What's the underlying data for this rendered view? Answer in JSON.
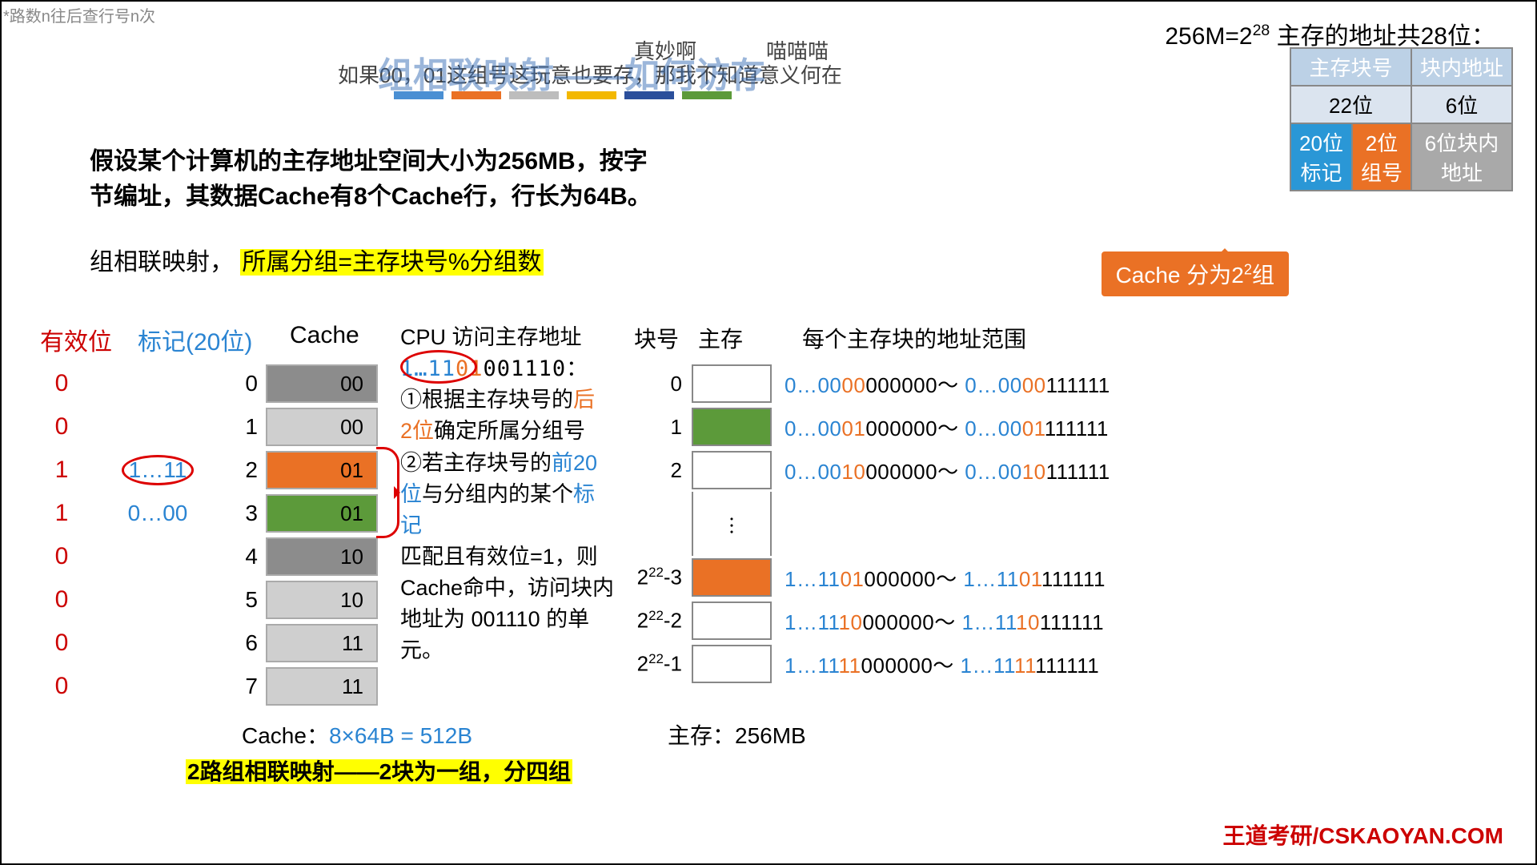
{
  "top_left": "*路数n往后查行号n次",
  "danmaku": {
    "d1": "如果00，01这组号这玩意也要存，那我不知道意义何在",
    "d2": "真妙啊",
    "d3": "喵喵喵"
  },
  "title_behind": "组相联映射——如何访存",
  "color_bars": [
    "#4a8fd3",
    "#ea7125",
    "#bdbdbd",
    "#f3b800",
    "#2b4f9b",
    "#5c9a3a"
  ],
  "problem": "假设某个计算机的主存地址空间大小为256MB，按字节编址，其数据Cache有8个Cache行，行长为64B。",
  "mapping": {
    "pre": "组相联映射，",
    "hl": "所属分组=主存块号%分组数"
  },
  "addr_note_pre": "256M=2",
  "addr_note_sup": "28",
  "addr_note_post": " 主存的地址共28位：",
  "addr_table": {
    "h1": "主存块号",
    "h2": "块内地址",
    "r2a": "22位",
    "r2b": "6位",
    "c1": "20位",
    "c1b": "标记",
    "c2": "2位",
    "c2b": "组号",
    "c3": "6位块内",
    "c3b": "地址",
    "bg1": "#bcd1e6",
    "bg2": "#dbe4ef",
    "bg_tag": "#2a97d6",
    "bg_grp": "#ea7125",
    "bg_off": "#a9a9a9"
  },
  "cache_badge_pre": "Cache 分为2",
  "cache_badge_sup": "2",
  "cache_badge_post": "组",
  "headers": {
    "valid": "有效位",
    "tag": "标记(20位)",
    "cache": "Cache"
  },
  "cache_rows": [
    {
      "valid": "0",
      "tag": "",
      "label": "00",
      "bg": "#8c8c8c"
    },
    {
      "valid": "0",
      "tag": "",
      "label": "00",
      "bg": "#cfcfcf"
    },
    {
      "valid": "1",
      "tag": "1…11",
      "circle": true,
      "label": "01",
      "bg": "#ea7125"
    },
    {
      "valid": "1",
      "tag": "0…00",
      "label": "01",
      "bg": "#5c9a3a"
    },
    {
      "valid": "0",
      "tag": "",
      "label": "10",
      "bg": "#8c8c8c"
    },
    {
      "valid": "0",
      "tag": "",
      "label": "10",
      "bg": "#cfcfcf"
    },
    {
      "valid": "0",
      "tag": "",
      "label": "11",
      "bg": "#cfcfcf"
    },
    {
      "valid": "0",
      "tag": "",
      "label": "11",
      "bg": "#cfcfcf"
    }
  ],
  "cache_size_pre": "Cache：",
  "cache_size_calc": "8×64B = 512B",
  "cache_note": "2路组相联映射——2块为一组，分四组",
  "steps": {
    "title": "CPU 访问主存地址",
    "bits_blue": "1…11",
    "bits_orange": "01",
    "bits_rest": "001110：",
    "s1a": "①根据主存块号的",
    "s1b": "后",
    "s1c": "2位",
    "s1d": "确定所属分组号",
    "s2a": "②若主存块号的",
    "s2b": "前20",
    "s2c": "位",
    "s2d": "与分组内的某个",
    "s2e": "标记",
    "s2f": "匹配且有效位=1，则Cache命中，访问块内地址为 001110 的单元。"
  },
  "mm_hdr1": "块号",
  "mm_hdr2": "主存",
  "mm_hdr3": "每个主存块的地址范围",
  "mm_rows": [
    {
      "idx": "0",
      "bg": "#ffffff",
      "r": {
        "p1": "0…00",
        "p2": "00",
        "p3": "000000",
        "p4": "0…00",
        "p5": "00",
        "p6": "111111"
      }
    },
    {
      "idx": "1",
      "bg": "#5c9a3a",
      "r": {
        "p1": "0…00",
        "p2": "01",
        "p3": "000000",
        "p4": "0…00",
        "p5": "01",
        "p6": "111111"
      }
    },
    {
      "idx": "2",
      "bg": "#ffffff",
      "r": {
        "p1": "0…00",
        "p2": "10",
        "p3": "000000",
        "p4": "0…00",
        "p5": "10",
        "p6": "111111"
      }
    },
    {
      "dots": true
    },
    {
      "idx_html": "2<sup>22</sup>-3",
      "bg": "#ea7125",
      "r": {
        "p1": "1…11",
        "p2": "01",
        "p3": "000000",
        "p4": "1…11",
        "p5": "01",
        "p6": "111111"
      }
    },
    {
      "idx_html": "2<sup>22</sup>-2",
      "bg": "#ffffff",
      "r": {
        "p1": "1…11",
        "p2": "10",
        "p3": "000000",
        "p4": "1…11",
        "p5": "10",
        "p6": "111111"
      }
    },
    {
      "idx_html": "2<sup>22</sup>-1",
      "bg": "#ffffff",
      "r": {
        "p1": "1…11",
        "p2": "11",
        "p3": "000000",
        "p4": "1…11",
        "p5": "11",
        "p6": "111111"
      }
    }
  ],
  "mm_size": "主存：256MB",
  "watermark": "王道考研/CSKAOYAN.COM"
}
